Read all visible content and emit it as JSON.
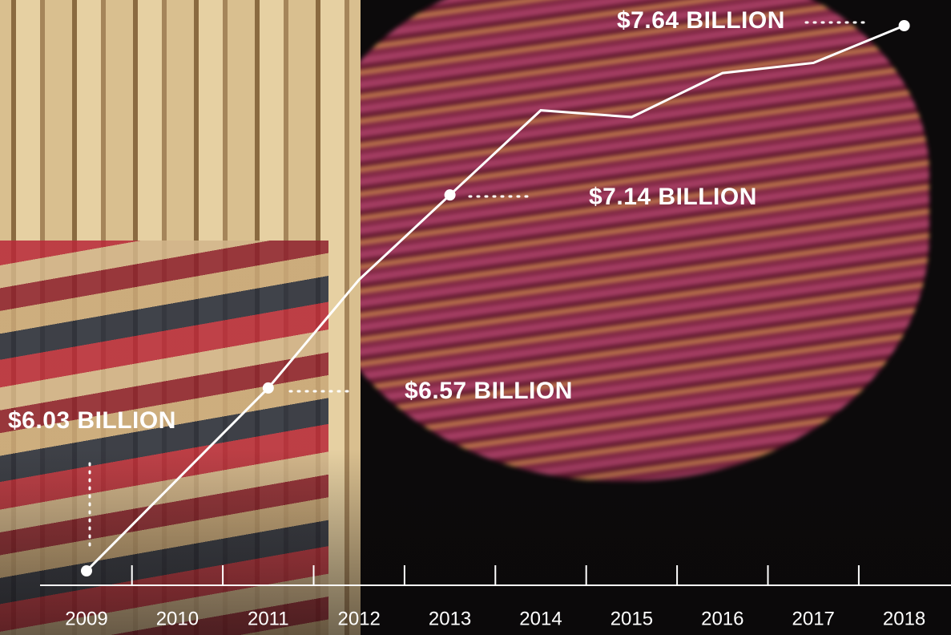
{
  "chart_data": {
    "type": "line",
    "categories": [
      "2009",
      "2010",
      "2011",
      "2012",
      "2013",
      "2014",
      "2015",
      "2016",
      "2017",
      "2018"
    ],
    "series": [
      {
        "name": null,
        "color": "#ffffff",
        "values": [
          6.03,
          6.3,
          6.57,
          6.89,
          7.14,
          7.39,
          7.37,
          7.5,
          7.53,
          7.64
        ],
        "value_labels": [
          "$6.03 BILLION",
          null,
          "$6.57 BILLION",
          null,
          "$7.14 BILLION",
          null,
          null,
          null,
          null,
          "$7.64 BILLION"
        ]
      }
    ]
  }
}
